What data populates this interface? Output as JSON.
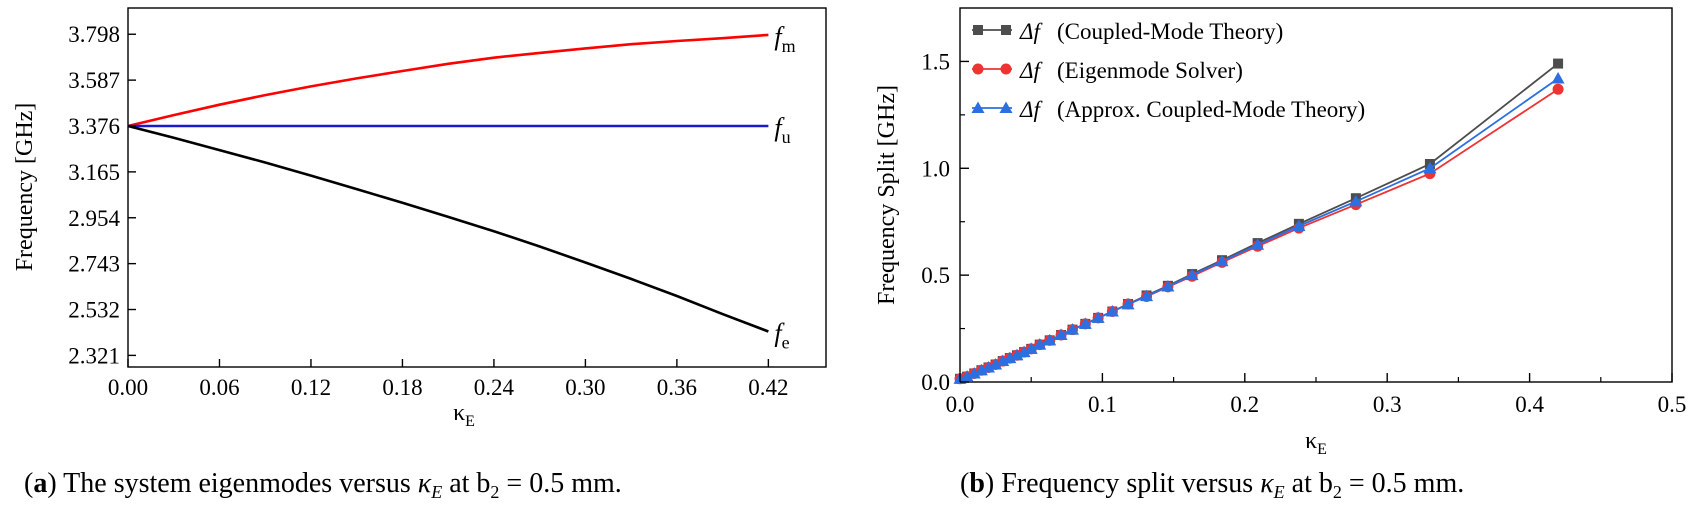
{
  "chart_data": [
    {
      "type": "line",
      "panel": "a",
      "caption": {
        "label": "a",
        "text_before": "The system eigenmodes versus ",
        "kappa": "κ",
        "kappa_sub": "E",
        "text_after": " at b",
        "b_sub": "2",
        "text_end": " = 0.5 mm."
      },
      "xlabel": "κ",
      "xlabel_sub": "E",
      "ylabel": "Frequency [GHz]",
      "xlim": [
        0.0,
        0.4578
      ],
      "ylim": [
        2.2676,
        3.9187
      ],
      "xticks": [
        "0.00",
        "0.06",
        "0.12",
        "0.18",
        "0.24",
        "0.30",
        "0.36",
        "0.42"
      ],
      "xtick_values": [
        0.0,
        0.06,
        0.12,
        0.18,
        0.24,
        0.3,
        0.36,
        0.42
      ],
      "yticks": [
        "2.321",
        "2.532",
        "2.743",
        "2.954",
        "3.165",
        "3.376",
        "3.587",
        "3.798"
      ],
      "ytick_values": [
        2.321,
        2.532,
        2.743,
        2.954,
        3.165,
        3.376,
        3.587,
        3.798
      ],
      "series": [
        {
          "name": "f_m",
          "label": "f",
          "label_sub": "m",
          "color": "#ff0000",
          "x": [
            0.0,
            0.03,
            0.06,
            0.09,
            0.12,
            0.15,
            0.18,
            0.21,
            0.24,
            0.27,
            0.3,
            0.33,
            0.36,
            0.39,
            0.42
          ],
          "y": [
            3.376,
            3.426,
            3.474,
            3.518,
            3.558,
            3.595,
            3.629,
            3.662,
            3.69,
            3.712,
            3.733,
            3.752,
            3.767,
            3.78,
            3.795
          ]
        },
        {
          "name": "f_u",
          "label": "f",
          "label_sub": "u",
          "color": "#1a1acc",
          "x": [
            0.0,
            0.42
          ],
          "y": [
            3.376,
            3.376
          ]
        },
        {
          "name": "f_e",
          "label": "f",
          "label_sub": "e",
          "color": "#000000",
          "x": [
            0.0,
            0.03,
            0.06,
            0.09,
            0.12,
            0.15,
            0.18,
            0.21,
            0.24,
            0.27,
            0.3,
            0.33,
            0.36,
            0.39,
            0.42
          ],
          "y": [
            3.376,
            3.322,
            3.265,
            3.208,
            3.148,
            3.086,
            3.023,
            2.958,
            2.892,
            2.822,
            2.748,
            2.673,
            2.594,
            2.511,
            2.431
          ]
        }
      ]
    },
    {
      "type": "line",
      "panel": "b",
      "caption": {
        "label": "b",
        "text_before": "Frequency split versus ",
        "kappa": "κ",
        "kappa_sub": "E",
        "text_after": " at b",
        "b_sub": "2",
        "text_end": " = 0.5 mm."
      },
      "xlabel": "κ",
      "xlabel_sub": "E",
      "ylabel": "Frequency Split [GHz]",
      "xlim": [
        0.0,
        0.5
      ],
      "ylim": [
        0.0,
        1.75
      ],
      "xticks": [
        "0.0",
        "0.1",
        "0.2",
        "0.3",
        "0.4",
        "0.5"
      ],
      "xtick_values": [
        0.0,
        0.1,
        0.2,
        0.3,
        0.4,
        0.5
      ],
      "yticks": [
        "0.0",
        "0.5",
        "1.0",
        "1.5"
      ],
      "ytick_values": [
        0.0,
        0.5,
        1.0,
        1.5
      ],
      "legend_position": "top-left",
      "series": [
        {
          "name": "Δf (Coupled-Mode Theory)",
          "legend_symbol": "Δf",
          "legend_text": "(Coupled-Mode Theory)",
          "color": "#4d4d4d",
          "marker": "square",
          "x": [
            0.0,
            0.005,
            0.01,
            0.015,
            0.02,
            0.025,
            0.03,
            0.035,
            0.04,
            0.045,
            0.05,
            0.056,
            0.063,
            0.071,
            0.079,
            0.088,
            0.097,
            0.107,
            0.118,
            0.131,
            0.146,
            0.163,
            0.184,
            0.209,
            0.238,
            0.278,
            0.33,
            0.42
          ],
          "y": [
            0.015,
            0.025,
            0.04,
            0.055,
            0.068,
            0.082,
            0.098,
            0.112,
            0.125,
            0.14,
            0.155,
            0.175,
            0.195,
            0.22,
            0.245,
            0.272,
            0.3,
            0.33,
            0.365,
            0.405,
            0.45,
            0.505,
            0.57,
            0.65,
            0.74,
            0.86,
            1.02,
            1.49
          ]
        },
        {
          "name": "Δf (Eigenmode Solver)",
          "legend_symbol": "Δf",
          "legend_text": "(Eigenmode Solver)",
          "color": "#ee3333",
          "marker": "circle",
          "x": [
            0.0,
            0.005,
            0.01,
            0.015,
            0.02,
            0.025,
            0.03,
            0.035,
            0.04,
            0.045,
            0.05,
            0.056,
            0.063,
            0.071,
            0.079,
            0.088,
            0.097,
            0.107,
            0.118,
            0.131,
            0.146,
            0.163,
            0.184,
            0.209,
            0.238,
            0.278,
            0.33,
            0.42
          ],
          "y": [
            0.015,
            0.025,
            0.04,
            0.055,
            0.068,
            0.082,
            0.098,
            0.112,
            0.125,
            0.14,
            0.155,
            0.175,
            0.195,
            0.22,
            0.245,
            0.272,
            0.3,
            0.33,
            0.365,
            0.4,
            0.445,
            0.495,
            0.56,
            0.635,
            0.72,
            0.83,
            0.975,
            1.37
          ]
        },
        {
          "name": "Δf (Approx. Coupled-Mode Theory)",
          "legend_symbol": "Δf",
          "legend_text": "(Approx. Coupled-Mode Theory)",
          "color": "#2b6fe0",
          "marker": "triangle",
          "x": [
            0.0,
            0.005,
            0.01,
            0.015,
            0.02,
            0.025,
            0.03,
            0.035,
            0.04,
            0.045,
            0.05,
            0.056,
            0.063,
            0.071,
            0.079,
            0.088,
            0.097,
            0.107,
            0.118,
            0.131,
            0.146,
            0.163,
            0.184,
            0.209,
            0.238,
            0.278,
            0.33,
            0.42
          ],
          "y": [
            0.015,
            0.025,
            0.04,
            0.055,
            0.068,
            0.082,
            0.098,
            0.112,
            0.125,
            0.14,
            0.155,
            0.175,
            0.195,
            0.22,
            0.245,
            0.272,
            0.3,
            0.33,
            0.363,
            0.402,
            0.447,
            0.5,
            0.565,
            0.642,
            0.73,
            0.845,
            1.0,
            1.42
          ]
        }
      ]
    }
  ]
}
